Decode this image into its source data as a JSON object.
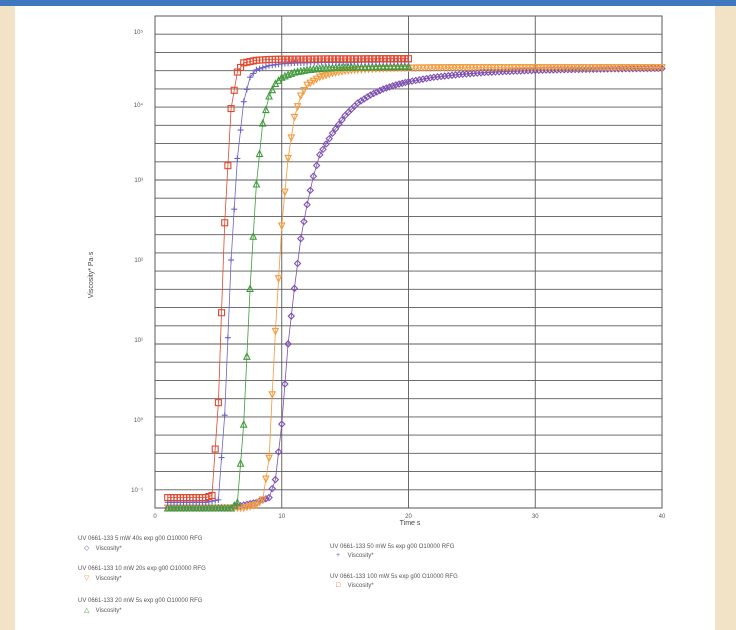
{
  "page": {
    "background": "#f2e3c6",
    "accent": "#3f78be"
  },
  "chart_data": {
    "type": "scatter",
    "title": "",
    "xlabel": "Time s",
    "ylabel": "Viscosity* Pa·s",
    "x_ticks": [
      "0",
      "10",
      "20",
      "30",
      "40"
    ],
    "y_ticks": [
      "10⁻¹",
      "10⁰",
      "10¹",
      "10²",
      "10³",
      "10⁴",
      "10⁵"
    ],
    "xlim": [
      0,
      40
    ],
    "ylim_log10": [
      -1,
      5.9
    ],
    "grid": true,
    "log_y": true,
    "legend_position": "bottom",
    "series": [
      {
        "name": "UV 0661-133 5 mW 40s exp g00 O10000 RFG",
        "marker_label": "Viscosity*",
        "color": "#7d4fb1",
        "marker": "diamond",
        "x": [
          1,
          2,
          3,
          4,
          5,
          6,
          7,
          8,
          9,
          9.5,
          10,
          10.5,
          11,
          11.5,
          12,
          12.5,
          13,
          14,
          15,
          16,
          17,
          18,
          19,
          20,
          22,
          24,
          26,
          28,
          30,
          32,
          34,
          36,
          38,
          40
        ],
        "y": [
          0.1,
          0.1,
          0.1,
          0.1,
          0.1,
          0.1,
          0.11,
          0.12,
          0.14,
          0.25,
          1.5,
          20,
          120,
          600,
          1800,
          4500,
          9000,
          18000,
          32000,
          48000,
          62000,
          75000,
          86000,
          95000,
          110000,
          120000,
          128000,
          133000,
          137000,
          140000,
          142000,
          144000,
          145000,
          146000
        ]
      },
      {
        "name": "UV 0661-133 10 mW 20s exp g00 O10000 RFG",
        "marker_label": "Viscosity*",
        "color": "#f39a3c",
        "marker": "triangle-down",
        "x": [
          1,
          2,
          3,
          4,
          5,
          6,
          7,
          8,
          8.5,
          9,
          9.5,
          10,
          10.5,
          11,
          11.5,
          12,
          13,
          14,
          15,
          16,
          18,
          20,
          22,
          25,
          30,
          35,
          40
        ],
        "y": [
          0.1,
          0.1,
          0.1,
          0.1,
          0.1,
          0.1,
          0.1,
          0.11,
          0.13,
          0.5,
          30,
          900,
          8000,
          30000,
          60000,
          85000,
          110000,
          125000,
          135000,
          140000,
          145000,
          148000,
          149000,
          150000,
          150000,
          150000,
          150000
        ]
      },
      {
        "name": "UV 0661-133 20 mW 5s exp g00 O10000 RFG",
        "marker_label": "Viscosity*",
        "color": "#3f9a3c",
        "marker": "triangle-up",
        "x": [
          1,
          2,
          3,
          4,
          5,
          6,
          6.5,
          7,
          7.5,
          8,
          8.5,
          9,
          9.5,
          10,
          11,
          12,
          13,
          14,
          15,
          16,
          18,
          20
        ],
        "y": [
          0.1,
          0.1,
          0.1,
          0.1,
          0.1,
          0.1,
          0.12,
          1.5,
          120,
          3500,
          25000,
          60000,
          90000,
          110000,
          130000,
          140000,
          146000,
          150000,
          152000,
          153000,
          155000,
          156000
        ]
      },
      {
        "name": "UV 0661-133 50 mW 5s exp g00 O10000 RFG",
        "marker_label": "Viscosity*",
        "color": "#6b63c9",
        "marker": "plus",
        "x": [
          1,
          2,
          3,
          4,
          5,
          5.5,
          6,
          6.5,
          7,
          7.5,
          8,
          9,
          10,
          11,
          12,
          14,
          16,
          18,
          20
        ],
        "y": [
          0.12,
          0.12,
          0.12,
          0.12,
          0.13,
          2,
          300,
          8000,
          50000,
          110000,
          140000,
          160000,
          170000,
          174000,
          176000,
          178000,
          179000,
          180000,
          180000
        ]
      },
      {
        "name": "UV 0661-133 100 mW 5s exp g00 O10000 RFG",
        "marker_label": "Viscosity*",
        "color": "#e2482f",
        "marker": "square",
        "x": [
          1,
          2,
          3,
          4,
          4.5,
          5,
          5.5,
          6,
          6.5,
          7,
          8,
          9,
          10,
          12,
          14,
          16,
          18,
          20
        ],
        "y": [
          0.14,
          0.14,
          0.14,
          0.14,
          0.15,
          3,
          1000,
          40000,
          130000,
          175000,
          190000,
          195000,
          197000,
          198000,
          199000,
          199000,
          200000,
          200000
        ]
      }
    ]
  }
}
